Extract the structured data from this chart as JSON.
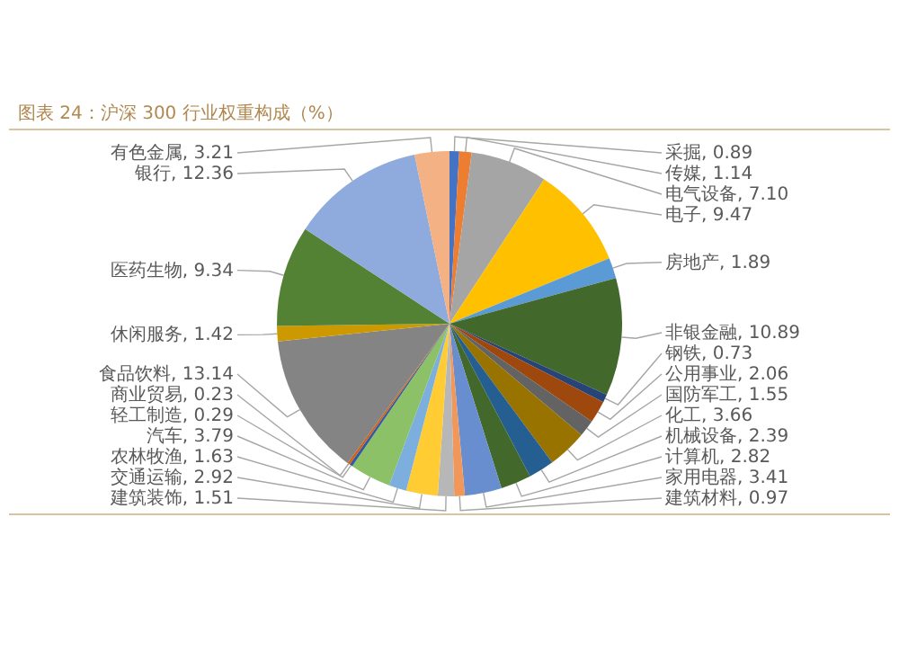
{
  "chart_data": {
    "type": "pie",
    "title": "图表 24：沪深 300 行业权重构成（%）",
    "categories": [
      "采掘",
      "传媒",
      "电气设备",
      "电子",
      "房地产",
      "非银金融",
      "钢铁",
      "公用事业",
      "国防军工",
      "化工",
      "机械设备",
      "计算机",
      "家用电器",
      "建筑材料",
      "建筑装饰",
      "交通运输",
      "农林牧渔",
      "汽车",
      "轻工制造",
      "商业贸易",
      "食品饮料",
      "休闲服务",
      "医药生物",
      "银行",
      "有色金属"
    ],
    "values": [
      0.89,
      1.14,
      7.1,
      9.47,
      1.89,
      10.89,
      0.73,
      2.06,
      1.55,
      3.66,
      2.39,
      2.82,
      3.41,
      0.97,
      1.51,
      2.92,
      1.63,
      3.79,
      0.29,
      0.23,
      13.14,
      1.42,
      9.34,
      12.36,
      3.21
    ],
    "colors": [
      "#4472c4",
      "#ed7d31",
      "#a5a5a5",
      "#ffc000",
      "#5b9bd5",
      "#43682b",
      "#264478",
      "#9e480e",
      "#636363",
      "#997300",
      "#255e91",
      "#43682b",
      "#698ed0",
      "#f1975a",
      "#b7b7b7",
      "#ffcd33",
      "#7cafdd",
      "#8cc168",
      "#335aa1",
      "#d26012",
      "#848484",
      "#cc9a00",
      "#548235",
      "#8faadc",
      "#f4b183"
    ],
    "data_labels": true,
    "value_labels": [
      "0.89",
      "1.14",
      "7.10",
      "9.47",
      "1.89",
      "10.89",
      "0.73",
      "2.06",
      "1.55",
      "3.66",
      "2.39",
      "2.82",
      "3.41",
      "0.97",
      "1.51",
      "2.92",
      "1.63",
      "3.79",
      "0.29",
      "0.23",
      "13.14",
      "1.42",
      "9.34",
      "12.36",
      "3.21"
    ]
  }
}
